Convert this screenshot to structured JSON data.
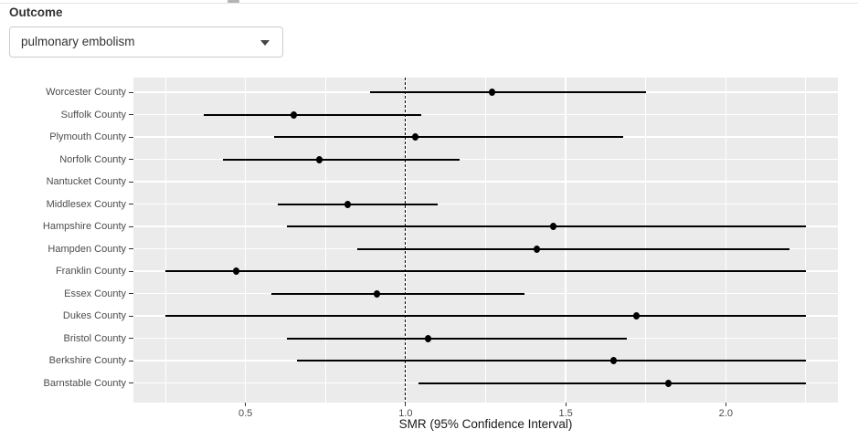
{
  "controls": {
    "outcome_label": "Outcome",
    "outcome_value": "pulmonary embolism"
  },
  "chart_data": {
    "type": "scatter",
    "subtype": "forest-plot",
    "title": "",
    "xlabel": "SMR (95% Confidence Interval)",
    "ylabel": "",
    "xlim": [
      0.15,
      2.35
    ],
    "x_ticks": [
      0.5,
      1.0,
      1.5,
      2.0
    ],
    "x_tick_labels": [
      "0.5",
      "1.0",
      "1.5",
      "2.0"
    ],
    "x_minor_ticks": [
      0.25,
      0.75,
      1.25,
      1.75,
      2.25
    ],
    "reference_line_x": 1.0,
    "grid": true,
    "legend": "none",
    "categories": [
      "Worcester County",
      "Suffolk County",
      "Plymouth County",
      "Norfolk County",
      "Nantucket County",
      "Middlesex County",
      "Hampshire County",
      "Hampden County",
      "Franklin County",
      "Essex County",
      "Dukes County",
      "Bristol County",
      "Berkshire County",
      "Barnstable County"
    ],
    "series": [
      {
        "name": "SMR (95% CI)",
        "points": [
          {
            "category": "Worcester County",
            "est": 1.27,
            "lo": 0.89,
            "hi": 1.75
          },
          {
            "category": "Suffolk County",
            "est": 0.65,
            "lo": 0.37,
            "hi": 1.05
          },
          {
            "category": "Plymouth County",
            "est": 1.03,
            "lo": 0.59,
            "hi": 1.68
          },
          {
            "category": "Norfolk County",
            "est": 0.73,
            "lo": 0.43,
            "hi": 1.17
          },
          {
            "category": "Nantucket County",
            "est": null,
            "lo": null,
            "hi": null
          },
          {
            "category": "Middlesex County",
            "est": 0.82,
            "lo": 0.6,
            "hi": 1.1
          },
          {
            "category": "Hampshire County",
            "est": 1.46,
            "lo": 0.63,
            "hi": 2.25
          },
          {
            "category": "Hampden County",
            "est": 1.41,
            "lo": 0.85,
            "hi": 2.2
          },
          {
            "category": "Franklin County",
            "est": 0.47,
            "lo": 0.25,
            "hi": 2.25
          },
          {
            "category": "Essex County",
            "est": 0.91,
            "lo": 0.58,
            "hi": 1.37
          },
          {
            "category": "Dukes County",
            "est": 1.72,
            "lo": 0.25,
            "hi": 2.25
          },
          {
            "category": "Bristol County",
            "est": 1.07,
            "lo": 0.63,
            "hi": 1.69
          },
          {
            "category": "Berkshire County",
            "est": 1.65,
            "lo": 0.66,
            "hi": 2.25
          },
          {
            "category": "Barnstable County",
            "est": 1.82,
            "lo": 1.04,
            "hi": 2.25
          }
        ]
      }
    ],
    "colors": {
      "panel_bg": "#ebebeb",
      "gridline": "#ffffff",
      "marker": "#000000",
      "ci_line": "#000000",
      "reference_line": "#000000",
      "axis_text": "#4d4d4d",
      "tick_mark": "#333333"
    }
  }
}
